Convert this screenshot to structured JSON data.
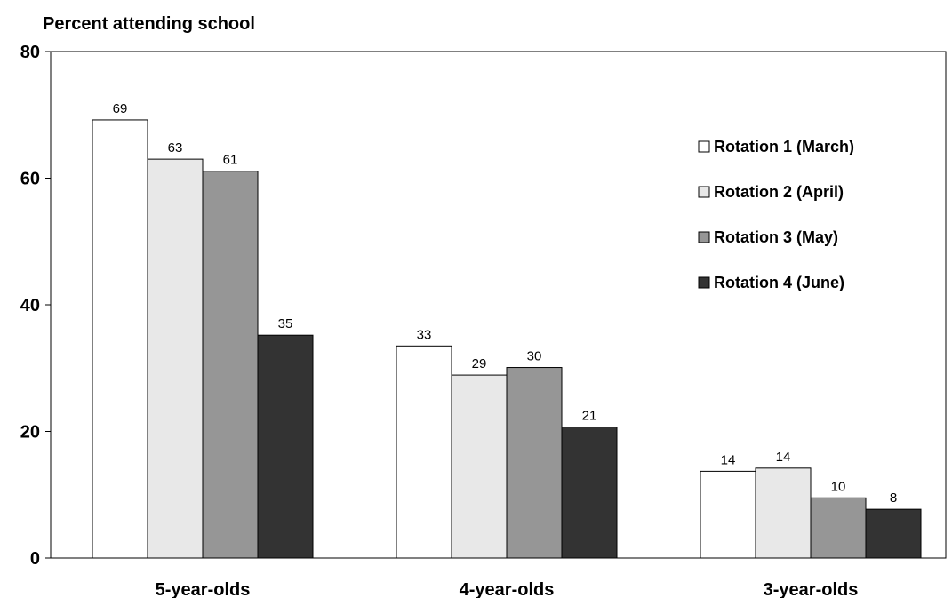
{
  "chart_data": {
    "type": "bar",
    "ylabel": "Percent attending  school",
    "xlabel": "",
    "ylim": [
      0,
      80
    ],
    "yticks": [
      0,
      20,
      40,
      60,
      80
    ],
    "categories": [
      "5-year-olds",
      "4-year-olds",
      "3-year-olds"
    ],
    "series": [
      {
        "name": "Rotation 1 (March)",
        "color": "#ffffff",
        "values": [
          69,
          33,
          14
        ],
        "plot_values": [
          69.2,
          33.5,
          13.7
        ]
      },
      {
        "name": "Rotation 2 (April)",
        "color": "#e8e8e8",
        "values": [
          63,
          29,
          14
        ],
        "plot_values": [
          63.0,
          28.9,
          14.2
        ]
      },
      {
        "name": "Rotation 3 (May)",
        "color": "#969696",
        "values": [
          61,
          30,
          10
        ],
        "plot_values": [
          61.1,
          30.1,
          9.5
        ]
      },
      {
        "name": "Rotation 4 (June)",
        "color": "#333333",
        "values": [
          35,
          21,
          8
        ],
        "plot_values": [
          35.2,
          20.7,
          7.7
        ]
      }
    ],
    "legend_position": "right",
    "grid": false
  }
}
